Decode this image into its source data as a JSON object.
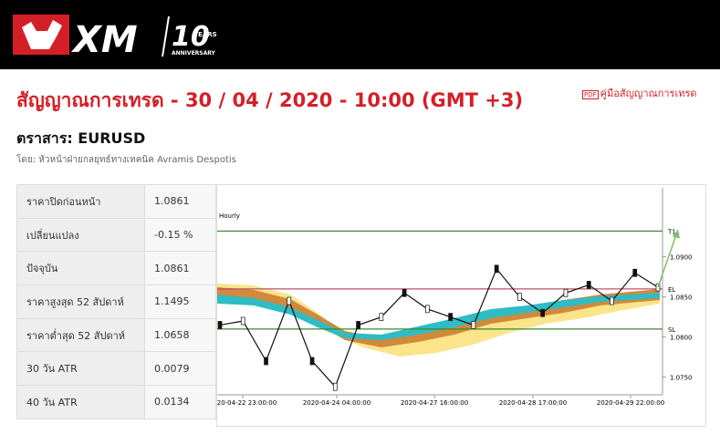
{
  "header": {
    "logo": "XM",
    "anniversary_number": "10",
    "anniversary_years": "YEARS",
    "anniversary_word": "ANNIVERSARY"
  },
  "page": {
    "title": "สัญญาณการเทรด - 30 / 04 / 2020 - 10:00 (GMT +3)",
    "guide_link": "คู่มือสัญญาณการเทรด",
    "instrument": "ตราสาร: EURUSD",
    "author": "โดย: หัวหน้าฝ่ายกลยุทธ์ทางเทคนิค Avramis Despotis"
  },
  "table": {
    "rows": [
      [
        "ราคาปิดก่อนหน้า",
        "1.0861"
      ],
      [
        "เปลี่ยนแปลง",
        "-0.15 %"
      ],
      [
        "ปัจจุบัน",
        "1.0861"
      ],
      [
        "ราคาสูงสุด 52 สัปดาห์",
        "1.1495"
      ],
      [
        "ราคาต่ำสุด 52 สัปดาห์",
        "1.0658"
      ],
      [
        "30 วัน ATR",
        "0.0079"
      ],
      [
        "40 วัน ATR",
        "0.0134"
      ]
    ]
  },
  "chart_data": {
    "type": "line",
    "timeframe": "Hourly",
    "x_labels": [
      "2020-04-22 23:00:00",
      "2020-04-24 04:00:00",
      "2020-04-27 16:00:00",
      "2020-04-28 17:00:00",
      "2020-04-29 22:00:00"
    ],
    "values": [
      1.0815,
      1.082,
      1.077,
      1.0845,
      1.077,
      1.0738,
      1.0815,
      1.0825,
      1.0855,
      1.0835,
      1.0825,
      1.0815,
      1.0885,
      1.085,
      1.083,
      1.0855,
      1.0865,
      1.0845,
      1.088,
      1.0862
    ],
    "color": "#111111",
    "levels": [
      {
        "name": "T1",
        "value": 1.0932,
        "color": "#3a8a2a"
      },
      {
        "name": "EL",
        "value": 1.086,
        "color": "#c0506a"
      },
      {
        "name": "SL",
        "value": 1.081,
        "color": "#3a8a2a"
      }
    ],
    "ylim": [
      1.0728,
      1.0986
    ],
    "yticks": [
      {
        "value": 1.09,
        "label": "1.0900"
      },
      {
        "value": 1.085,
        "label": "1.0850"
      },
      {
        "value": 1.08,
        "label": "1.0800"
      },
      {
        "value": 1.075,
        "label": "1.0750"
      }
    ]
  }
}
